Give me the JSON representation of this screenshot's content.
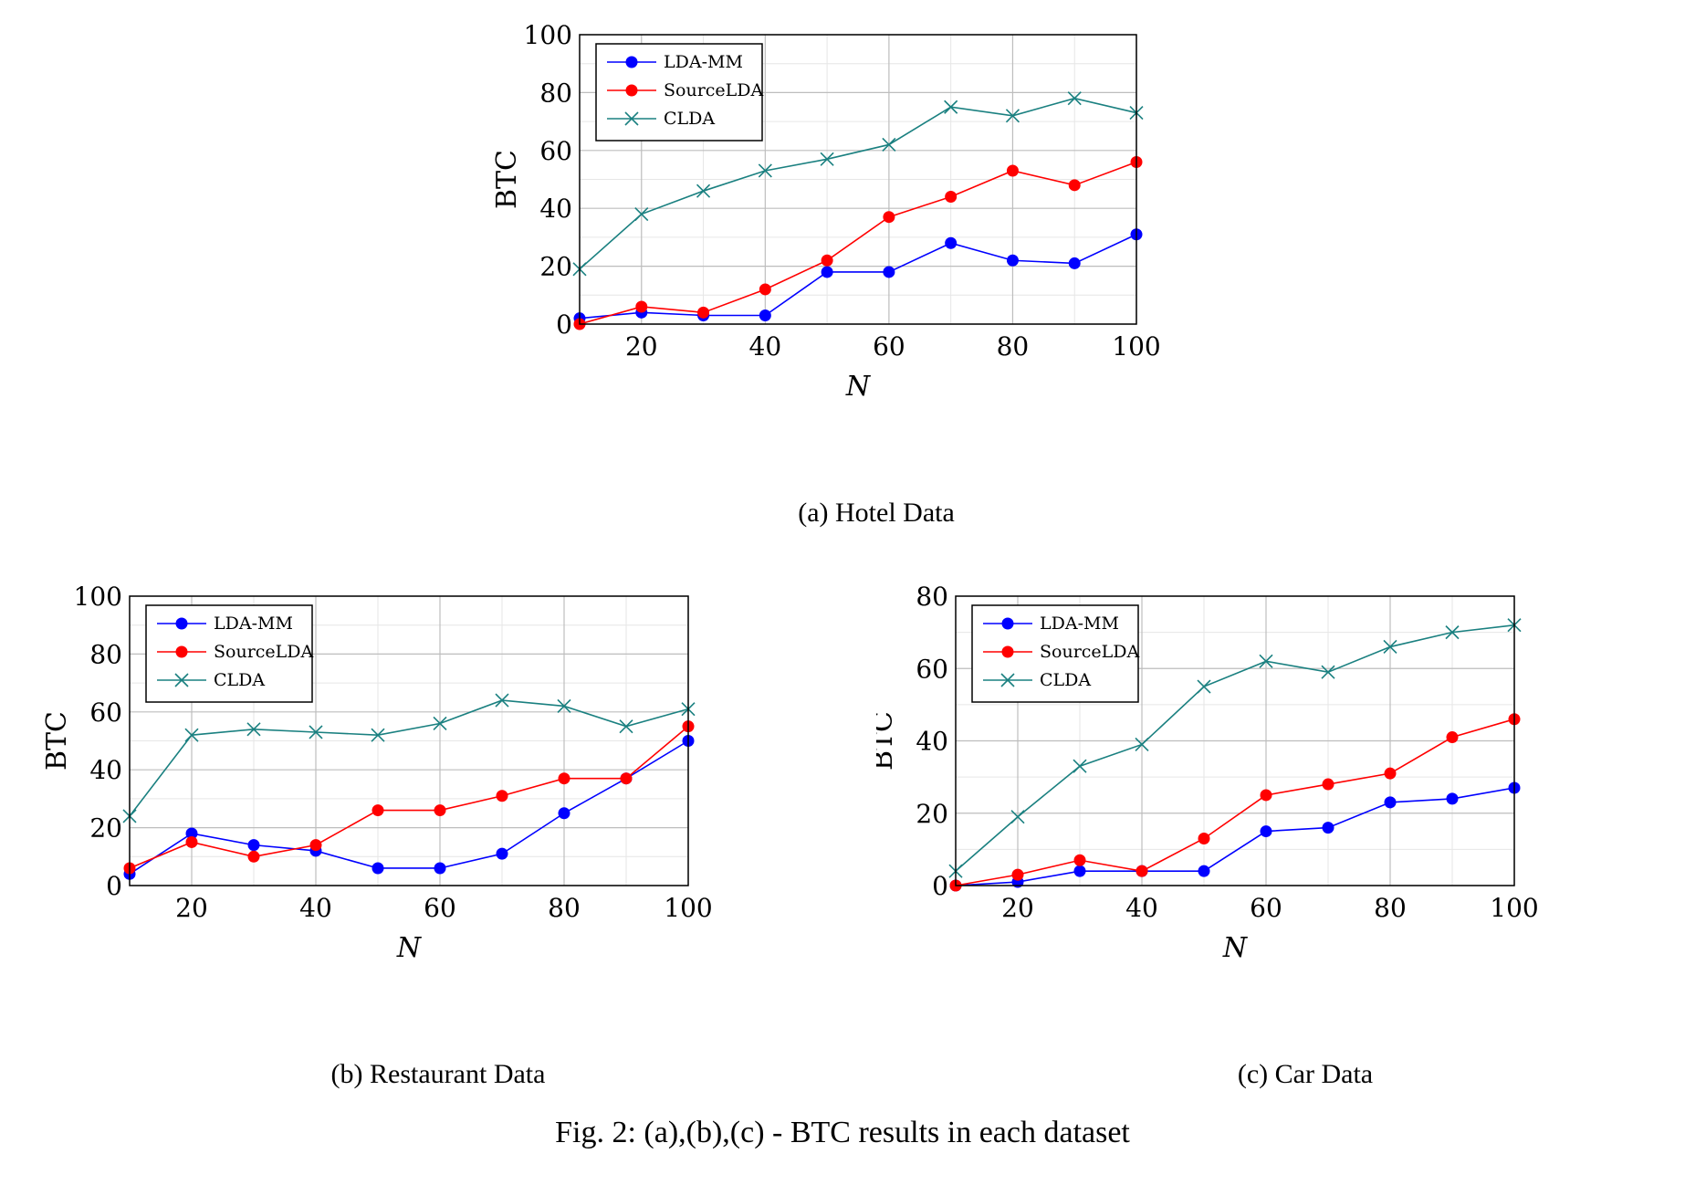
{
  "figure_caption": "Fig. 2: (a),(b),(c) - BTC results in each dataset",
  "colors": {
    "LDA-MM": "#0000ff",
    "SourceLDA": "#ff0000",
    "CLDA": "#1a8080",
    "grid": "#bdbdbd"
  },
  "legend_labels": [
    "LDA-MM",
    "SourceLDA",
    "CLDA"
  ],
  "chart_data": [
    {
      "type": "line",
      "caption": "(a) Hotel Data",
      "xlabel": "N",
      "ylabel": "BTC",
      "xlim": [
        10,
        100
      ],
      "ylim": [
        0,
        100
      ],
      "xticks": [
        20,
        40,
        60,
        80,
        100
      ],
      "yticks": [
        0,
        20,
        40,
        60,
        80,
        100
      ],
      "grid": true,
      "legend_position": "top-left",
      "x": [
        10,
        20,
        30,
        40,
        50,
        60,
        70,
        80,
        90,
        100
      ],
      "series": [
        {
          "name": "LDA-MM",
          "marker": "circle",
          "values": [
            2,
            4,
            3,
            3,
            18,
            18,
            28,
            22,
            21,
            31
          ]
        },
        {
          "name": "SourceLDA",
          "marker": "circle",
          "values": [
            0,
            6,
            4,
            12,
            22,
            37,
            44,
            53,
            48,
            56
          ]
        },
        {
          "name": "CLDA",
          "marker": "x",
          "values": [
            19,
            38,
            46,
            53,
            57,
            62,
            75,
            72,
            78,
            73
          ]
        }
      ]
    },
    {
      "type": "line",
      "caption": "(b) Restaurant Data",
      "xlabel": "N",
      "ylabel": "BTC",
      "xlim": [
        10,
        100
      ],
      "ylim": [
        0,
        100
      ],
      "xticks": [
        20,
        40,
        60,
        80,
        100
      ],
      "yticks": [
        0,
        20,
        40,
        60,
        80,
        100
      ],
      "grid": true,
      "legend_position": "top-left",
      "x": [
        10,
        20,
        30,
        40,
        50,
        60,
        70,
        80,
        90,
        100
      ],
      "series": [
        {
          "name": "LDA-MM",
          "marker": "circle",
          "values": [
            4,
            18,
            14,
            12,
            6,
            6,
            11,
            25,
            37,
            50
          ]
        },
        {
          "name": "SourceLDA",
          "marker": "circle",
          "values": [
            6,
            15,
            10,
            14,
            26,
            26,
            31,
            37,
            37,
            55
          ]
        },
        {
          "name": "CLDA",
          "marker": "x",
          "values": [
            24,
            52,
            54,
            53,
            52,
            56,
            64,
            62,
            55,
            61
          ]
        }
      ]
    },
    {
      "type": "line",
      "caption": "(c) Car Data",
      "xlabel": "N",
      "ylabel": "BTC",
      "xlim": [
        10,
        100
      ],
      "ylim": [
        0,
        80
      ],
      "xticks": [
        20,
        40,
        60,
        80,
        100
      ],
      "yticks": [
        0,
        20,
        40,
        60,
        80
      ],
      "grid": true,
      "legend_position": "top-left",
      "x": [
        10,
        20,
        30,
        40,
        50,
        60,
        70,
        80,
        90,
        100
      ],
      "series": [
        {
          "name": "LDA-MM",
          "marker": "circle",
          "values": [
            0,
            1,
            4,
            4,
            4,
            15,
            16,
            23,
            24,
            27
          ]
        },
        {
          "name": "SourceLDA",
          "marker": "circle",
          "values": [
            0,
            3,
            7,
            4,
            13,
            25,
            28,
            31,
            41,
            46
          ]
        },
        {
          "name": "CLDA",
          "marker": "x",
          "values": [
            4,
            19,
            33,
            39,
            55,
            62,
            59,
            66,
            70,
            72
          ]
        }
      ]
    }
  ]
}
